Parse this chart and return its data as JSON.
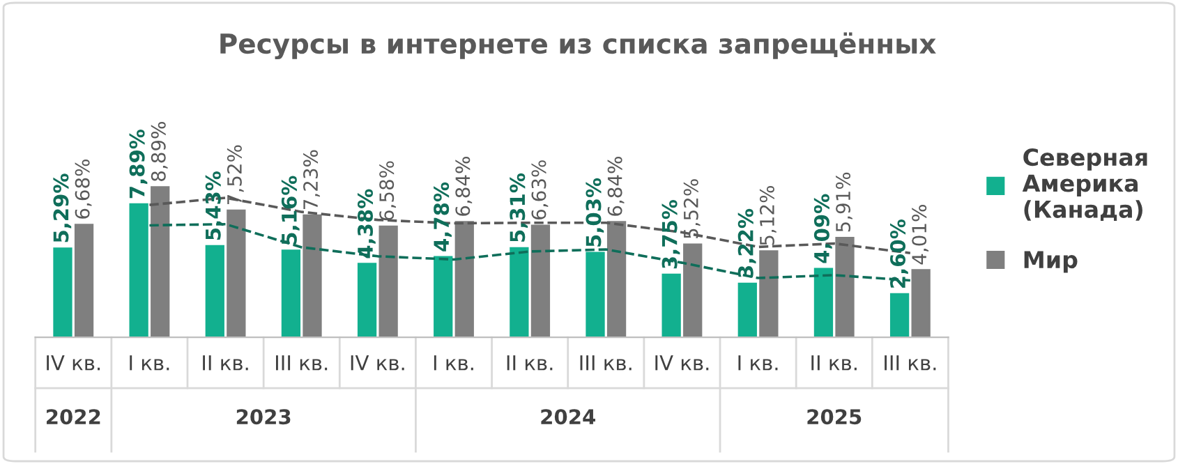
{
  "chart_data": {
    "type": "bar",
    "title": "Ресурсы в интернете из списка запрещённых",
    "categories": [
      "IV кв.",
      "I кв.",
      "II кв.",
      "III кв.",
      "IV кв.",
      "I кв.",
      "II кв.",
      "III кв.",
      "IV кв.",
      "I кв.",
      "II кв.",
      "III кв."
    ],
    "series": [
      {
        "name": "Северная Америка (Канада)",
        "color": "#12b08f",
        "values": [
          5.29,
          7.89,
          5.43,
          5.16,
          4.38,
          4.78,
          5.31,
          5.03,
          3.75,
          3.22,
          4.09,
          2.6
        ],
        "value_labels": [
          "5,29%",
          "7,89%",
          "5,43%",
          "5,16%",
          "4,38%",
          "4,78%",
          "5,31%",
          "5,03%",
          "3,75%",
          "3,22%",
          "4,09%",
          "2,60%"
        ]
      },
      {
        "name": "Мир",
        "color": "#7f7f7f",
        "values": [
          6.68,
          8.89,
          7.52,
          7.23,
          6.58,
          6.84,
          6.63,
          6.84,
          5.52,
          5.12,
          5.91,
          4.01
        ],
        "value_labels": [
          "6,68%",
          "8,89%",
          "7,52%",
          "7,23%",
          "6,58%",
          "6,84%",
          "6,63%",
          "6,84%",
          "5,52%",
          "5,12%",
          "5,91%",
          "4,01%"
        ]
      },
      {
        "type": "line",
        "color": "#0f6e5a",
        "line_style": "dashed",
        "values": [
          null,
          6.59,
          6.66,
          5.3,
          4.77,
          4.58,
          5.05,
          5.17,
          4.39,
          3.49,
          3.66,
          3.35
        ]
      },
      {
        "type": "line",
        "color": "#595959",
        "line_style": "dashed",
        "values": [
          null,
          7.79,
          8.21,
          7.38,
          6.91,
          6.71,
          6.74,
          6.74,
          6.18,
          5.32,
          5.52,
          4.96
        ]
      }
    ],
    "annotations": [
      "2022",
      "2023",
      "2024",
      "2025"
    ],
    "legend": "right",
    "grid": false
  }
}
